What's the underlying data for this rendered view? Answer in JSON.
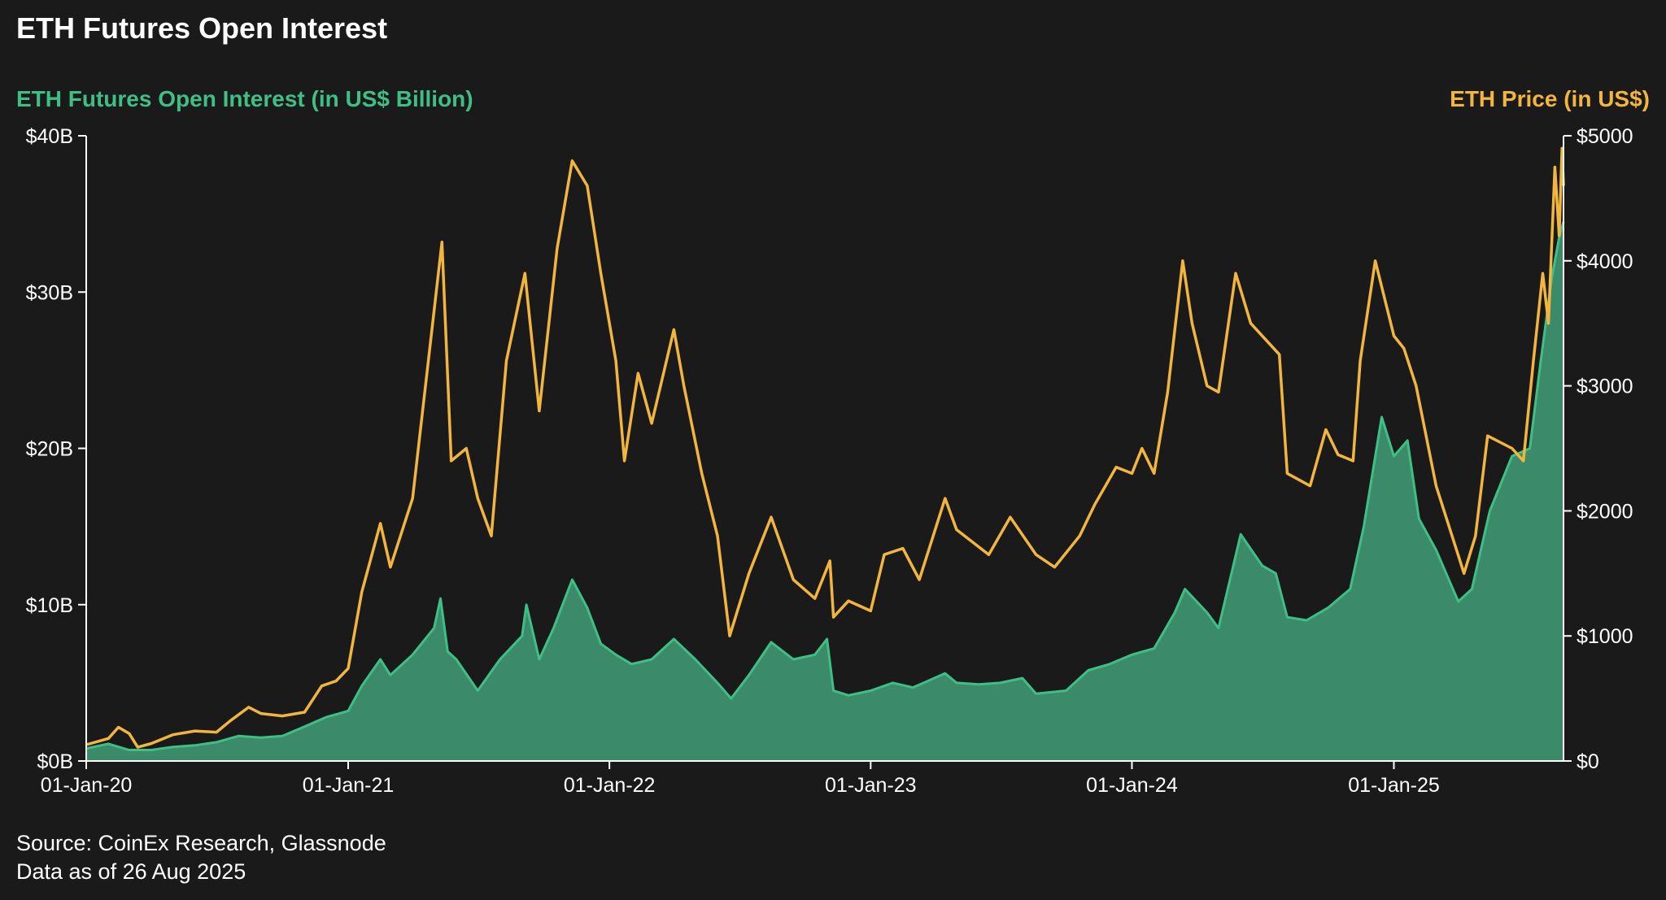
{
  "title": "ETH Futures Open Interest",
  "colors": {
    "oi": "#3fbf85",
    "oi_fill": "#3b8a6a",
    "price": "#f2b53d",
    "axis": "#ffffff",
    "background": "#1a1a1a"
  },
  "footer": {
    "source": "Source: CoinEx Research, Glassnode",
    "asof": "Data as of 26 Aug 2025"
  },
  "chart_data": {
    "type": "area",
    "title": "ETH Futures Open Interest",
    "ylabel_left": "ETH Futures Open Interest (in US$ Billion)",
    "ylabel_right": "ETH Price (in US$)",
    "ylim_left": [
      0,
      40
    ],
    "ylim_right": [
      0,
      5000
    ],
    "xlim": [
      "2020-01-01",
      "2025-08-26"
    ],
    "x_ticks": [
      {
        "date": "2020-01-01",
        "label": "01-Jan-20"
      },
      {
        "date": "2021-01-01",
        "label": "01-Jan-21"
      },
      {
        "date": "2022-01-01",
        "label": "01-Jan-22"
      },
      {
        "date": "2023-01-01",
        "label": "01-Jan-23"
      },
      {
        "date": "2024-01-01",
        "label": "01-Jan-24"
      },
      {
        "date": "2025-01-01",
        "label": "01-Jan-25"
      }
    ],
    "y_left_ticks": [
      {
        "value": 0,
        "label": "$0B"
      },
      {
        "value": 10,
        "label": "$10B"
      },
      {
        "value": 20,
        "label": "$20B"
      },
      {
        "value": 30,
        "label": "$30B"
      },
      {
        "value": 40,
        "label": "$40B"
      }
    ],
    "y_right_ticks": [
      {
        "value": 0,
        "label": "$0"
      },
      {
        "value": 1000,
        "label": "$1000"
      },
      {
        "value": 2000,
        "label": "$2000"
      },
      {
        "value": 3000,
        "label": "$3000"
      },
      {
        "value": 4000,
        "label": "$4000"
      },
      {
        "value": 5000,
        "label": "$5000"
      }
    ],
    "grid": false,
    "series": [
      {
        "name": "ETH Futures Open Interest (in US$ Billion)",
        "axis": "left",
        "type": "area",
        "points": [
          [
            "2020-01-01",
            0.8
          ],
          [
            "2020-02-01",
            1.1
          ],
          [
            "2020-03-01",
            0.7
          ],
          [
            "2020-04-01",
            0.7
          ],
          [
            "2020-05-01",
            0.9
          ],
          [
            "2020-06-01",
            1.0
          ],
          [
            "2020-07-01",
            1.2
          ],
          [
            "2020-08-01",
            1.6
          ],
          [
            "2020-09-01",
            1.5
          ],
          [
            "2020-10-01",
            1.6
          ],
          [
            "2020-11-01",
            2.2
          ],
          [
            "2020-12-01",
            2.8
          ],
          [
            "2021-01-01",
            3.2
          ],
          [
            "2021-01-20",
            4.8
          ],
          [
            "2021-02-15",
            6.5
          ],
          [
            "2021-03-01",
            5.5
          ],
          [
            "2021-04-01",
            6.8
          ],
          [
            "2021-05-01",
            8.5
          ],
          [
            "2021-05-10",
            10.4
          ],
          [
            "2021-05-20",
            7.0
          ],
          [
            "2021-06-01",
            6.5
          ],
          [
            "2021-07-01",
            4.5
          ],
          [
            "2021-08-01",
            6.5
          ],
          [
            "2021-09-01",
            8.0
          ],
          [
            "2021-09-07",
            10.0
          ],
          [
            "2021-09-25",
            6.5
          ],
          [
            "2021-10-15",
            8.5
          ],
          [
            "2021-11-10",
            11.6
          ],
          [
            "2021-12-01",
            9.8
          ],
          [
            "2021-12-20",
            7.5
          ],
          [
            "2022-01-10",
            6.8
          ],
          [
            "2022-02-01",
            6.2
          ],
          [
            "2022-03-01",
            6.5
          ],
          [
            "2022-04-01",
            7.8
          ],
          [
            "2022-05-01",
            6.5
          ],
          [
            "2022-06-01",
            5.0
          ],
          [
            "2022-06-20",
            4.0
          ],
          [
            "2022-07-15",
            5.5
          ],
          [
            "2022-08-15",
            7.6
          ],
          [
            "2022-09-15",
            6.5
          ],
          [
            "2022-10-15",
            6.8
          ],
          [
            "2022-11-01",
            7.8
          ],
          [
            "2022-11-10",
            4.5
          ],
          [
            "2022-12-01",
            4.2
          ],
          [
            "2023-01-01",
            4.5
          ],
          [
            "2023-02-01",
            5.0
          ],
          [
            "2023-03-01",
            4.7
          ],
          [
            "2023-04-15",
            5.6
          ],
          [
            "2023-05-01",
            5.0
          ],
          [
            "2023-06-01",
            4.9
          ],
          [
            "2023-07-01",
            5.0
          ],
          [
            "2023-08-01",
            5.3
          ],
          [
            "2023-08-20",
            4.3
          ],
          [
            "2023-10-01",
            4.5
          ],
          [
            "2023-11-01",
            5.8
          ],
          [
            "2023-12-01",
            6.2
          ],
          [
            "2024-01-01",
            6.8
          ],
          [
            "2024-02-01",
            7.2
          ],
          [
            "2024-03-01",
            9.5
          ],
          [
            "2024-03-15",
            11.0
          ],
          [
            "2024-04-15",
            9.5
          ],
          [
            "2024-05-01",
            8.5
          ],
          [
            "2024-06-01",
            14.5
          ],
          [
            "2024-07-01",
            12.5
          ],
          [
            "2024-07-20",
            12.0
          ],
          [
            "2024-08-05",
            9.2
          ],
          [
            "2024-09-01",
            9.0
          ],
          [
            "2024-10-01",
            9.8
          ],
          [
            "2024-11-01",
            11.0
          ],
          [
            "2024-11-20",
            15.0
          ],
          [
            "2024-12-15",
            22.0
          ],
          [
            "2025-01-01",
            19.5
          ],
          [
            "2025-01-20",
            20.5
          ],
          [
            "2025-02-05",
            15.5
          ],
          [
            "2025-03-01",
            13.5
          ],
          [
            "2025-04-01",
            10.2
          ],
          [
            "2025-04-20",
            11.0
          ],
          [
            "2025-05-15",
            16.0
          ],
          [
            "2025-06-15",
            19.5
          ],
          [
            "2025-07-10",
            20.0
          ],
          [
            "2025-07-25",
            25.5
          ],
          [
            "2025-08-10",
            31.0
          ],
          [
            "2025-08-20",
            33.5
          ],
          [
            "2025-08-26",
            34.5
          ]
        ]
      },
      {
        "name": "ETH Price (in US$)",
        "axis": "right",
        "type": "line",
        "points": [
          [
            "2020-01-01",
            130
          ],
          [
            "2020-02-01",
            180
          ],
          [
            "2020-02-15",
            270
          ],
          [
            "2020-03-01",
            220
          ],
          [
            "2020-03-13",
            110
          ],
          [
            "2020-04-01",
            140
          ],
          [
            "2020-05-01",
            210
          ],
          [
            "2020-06-01",
            240
          ],
          [
            "2020-07-01",
            230
          ],
          [
            "2020-07-20",
            320
          ],
          [
            "2020-08-15",
            430
          ],
          [
            "2020-09-01",
            380
          ],
          [
            "2020-10-01",
            360
          ],
          [
            "2020-11-01",
            390
          ],
          [
            "2020-11-25",
            600
          ],
          [
            "2020-12-15",
            640
          ],
          [
            "2021-01-01",
            740
          ],
          [
            "2021-01-20",
            1350
          ],
          [
            "2021-02-15",
            1900
          ],
          [
            "2021-03-01",
            1550
          ],
          [
            "2021-04-01",
            2100
          ],
          [
            "2021-05-12",
            4150
          ],
          [
            "2021-05-25",
            2400
          ],
          [
            "2021-06-15",
            2500
          ],
          [
            "2021-07-01",
            2100
          ],
          [
            "2021-07-20",
            1800
          ],
          [
            "2021-08-10",
            3200
          ],
          [
            "2021-09-05",
            3900
          ],
          [
            "2021-09-25",
            2800
          ],
          [
            "2021-10-20",
            4100
          ],
          [
            "2021-11-10",
            4800
          ],
          [
            "2021-12-01",
            4600
          ],
          [
            "2021-12-20",
            3900
          ],
          [
            "2022-01-10",
            3200
          ],
          [
            "2022-01-22",
            2400
          ],
          [
            "2022-02-10",
            3100
          ],
          [
            "2022-03-01",
            2700
          ],
          [
            "2022-04-01",
            3450
          ],
          [
            "2022-04-15",
            3000
          ],
          [
            "2022-05-10",
            2300
          ],
          [
            "2022-06-01",
            1800
          ],
          [
            "2022-06-18",
            1000
          ],
          [
            "2022-07-15",
            1500
          ],
          [
            "2022-08-15",
            1950
          ],
          [
            "2022-09-15",
            1450
          ],
          [
            "2022-10-15",
            1300
          ],
          [
            "2022-11-05",
            1600
          ],
          [
            "2022-11-10",
            1150
          ],
          [
            "2022-12-01",
            1280
          ],
          [
            "2023-01-01",
            1200
          ],
          [
            "2023-01-20",
            1650
          ],
          [
            "2023-02-15",
            1700
          ],
          [
            "2023-03-10",
            1450
          ],
          [
            "2023-04-15",
            2100
          ],
          [
            "2023-05-01",
            1850
          ],
          [
            "2023-06-15",
            1650
          ],
          [
            "2023-07-15",
            1950
          ],
          [
            "2023-08-20",
            1650
          ],
          [
            "2023-09-15",
            1550
          ],
          [
            "2023-10-20",
            1800
          ],
          [
            "2023-11-10",
            2050
          ],
          [
            "2023-12-10",
            2350
          ],
          [
            "2024-01-01",
            2300
          ],
          [
            "2024-01-15",
            2500
          ],
          [
            "2024-02-01",
            2300
          ],
          [
            "2024-02-20",
            2950
          ],
          [
            "2024-03-12",
            4000
          ],
          [
            "2024-03-25",
            3500
          ],
          [
            "2024-04-15",
            3000
          ],
          [
            "2024-05-01",
            2950
          ],
          [
            "2024-05-25",
            3900
          ],
          [
            "2024-06-15",
            3500
          ],
          [
            "2024-07-01",
            3400
          ],
          [
            "2024-07-25",
            3250
          ],
          [
            "2024-08-05",
            2300
          ],
          [
            "2024-09-06",
            2200
          ],
          [
            "2024-09-28",
            2650
          ],
          [
            "2024-10-15",
            2450
          ],
          [
            "2024-11-05",
            2400
          ],
          [
            "2024-11-15",
            3200
          ],
          [
            "2024-12-06",
            4000
          ],
          [
            "2025-01-01",
            3400
          ],
          [
            "2025-01-15",
            3300
          ],
          [
            "2025-02-01",
            3000
          ],
          [
            "2025-03-01",
            2200
          ],
          [
            "2025-04-09",
            1500
          ],
          [
            "2025-04-25",
            1800
          ],
          [
            "2025-05-12",
            2600
          ],
          [
            "2025-06-15",
            2500
          ],
          [
            "2025-07-01",
            2400
          ],
          [
            "2025-07-15",
            3200
          ],
          [
            "2025-07-28",
            3900
          ],
          [
            "2025-08-05",
            3500
          ],
          [
            "2025-08-14",
            4750
          ],
          [
            "2025-08-20",
            4200
          ],
          [
            "2025-08-24",
            4900
          ],
          [
            "2025-08-26",
            4600
          ]
        ]
      }
    ]
  }
}
